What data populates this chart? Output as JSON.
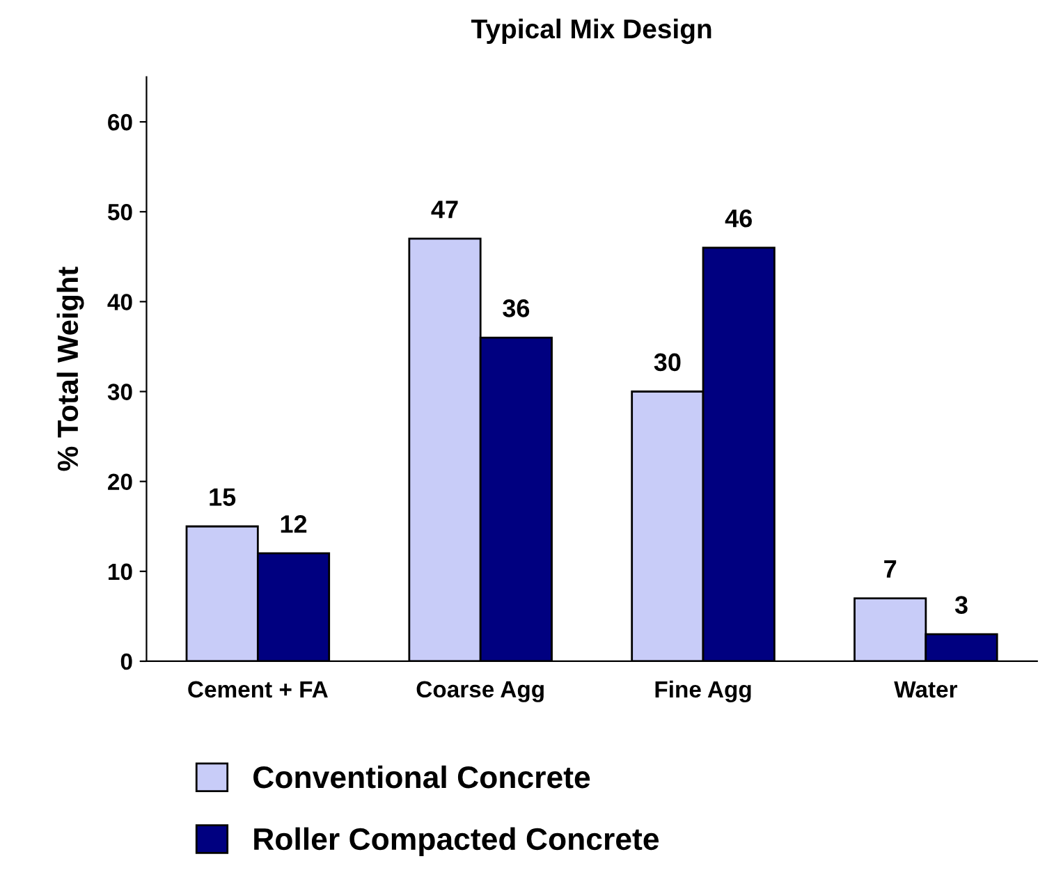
{
  "chart_data": {
    "type": "bar",
    "title": "Typical Mix Design",
    "ylabel": "% Total Weight",
    "categories": [
      "Cement + FA",
      "Coarse Agg",
      "Fine Agg",
      "Water"
    ],
    "series": [
      {
        "name": "Conventional Concrete",
        "color": "#c8ccf8",
        "values": [
          15,
          47,
          30,
          7
        ]
      },
      {
        "name": "Roller Compacted Concrete",
        "color": "#000080",
        "values": [
          12,
          36,
          46,
          3
        ]
      }
    ],
    "ylim": [
      0,
      65
    ],
    "yticks": [
      0,
      10,
      20,
      30,
      40,
      50,
      60
    ],
    "grid": false,
    "legend": "bottom",
    "data_labels": true
  }
}
